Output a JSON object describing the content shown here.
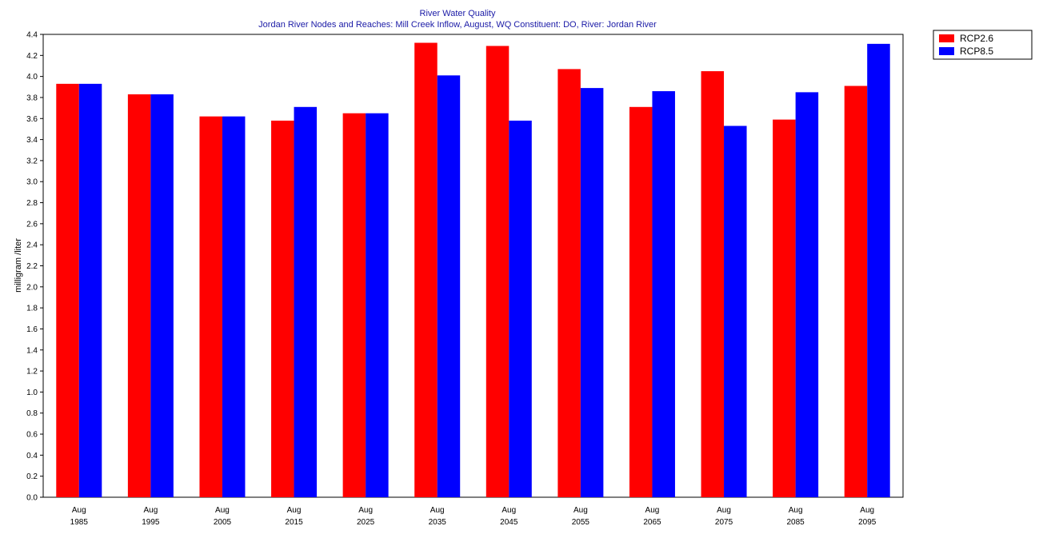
{
  "chart_data": {
    "type": "bar",
    "title": "River Water Quality",
    "subtitle": "Jordan River Nodes and Reaches: Mill Creek Inflow,  August,  WQ Constituent: DO,  River: Jordan River",
    "ylabel": "milligram /liter",
    "xlabel": "",
    "ylim": [
      0,
      4.4
    ],
    "y_ticks": [
      "0.0",
      "0.2",
      "0.4",
      "0.6",
      "0.8",
      "1.0",
      "1.2",
      "1.4",
      "1.6",
      "1.8",
      "2.0",
      "2.2",
      "2.4",
      "2.6",
      "2.8",
      "3.0",
      "3.2",
      "3.4",
      "3.6",
      "3.8",
      "4.0",
      "4.2",
      "4.4"
    ],
    "categories": [
      {
        "month": "Aug",
        "year": "1985"
      },
      {
        "month": "Aug",
        "year": "1995"
      },
      {
        "month": "Aug",
        "year": "2005"
      },
      {
        "month": "Aug",
        "year": "2015"
      },
      {
        "month": "Aug",
        "year": "2025"
      },
      {
        "month": "Aug",
        "year": "2035"
      },
      {
        "month": "Aug",
        "year": "2045"
      },
      {
        "month": "Aug",
        "year": "2055"
      },
      {
        "month": "Aug",
        "year": "2065"
      },
      {
        "month": "Aug",
        "year": "2075"
      },
      {
        "month": "Aug",
        "year": "2085"
      },
      {
        "month": "Aug",
        "year": "2095"
      }
    ],
    "series": [
      {
        "name": "RCP2.6",
        "color": "#ff0000",
        "values": [
          3.93,
          3.83,
          3.62,
          3.58,
          3.65,
          4.32,
          4.29,
          4.07,
          3.71,
          4.05,
          3.59,
          3.91
        ]
      },
      {
        "name": "RCP8.5",
        "color": "#0000ff",
        "values": [
          3.93,
          3.83,
          3.62,
          3.71,
          3.65,
          4.01,
          3.58,
          3.89,
          3.86,
          3.53,
          3.85,
          4.31
        ]
      }
    ],
    "grid": false,
    "legend_position": "top-right"
  }
}
